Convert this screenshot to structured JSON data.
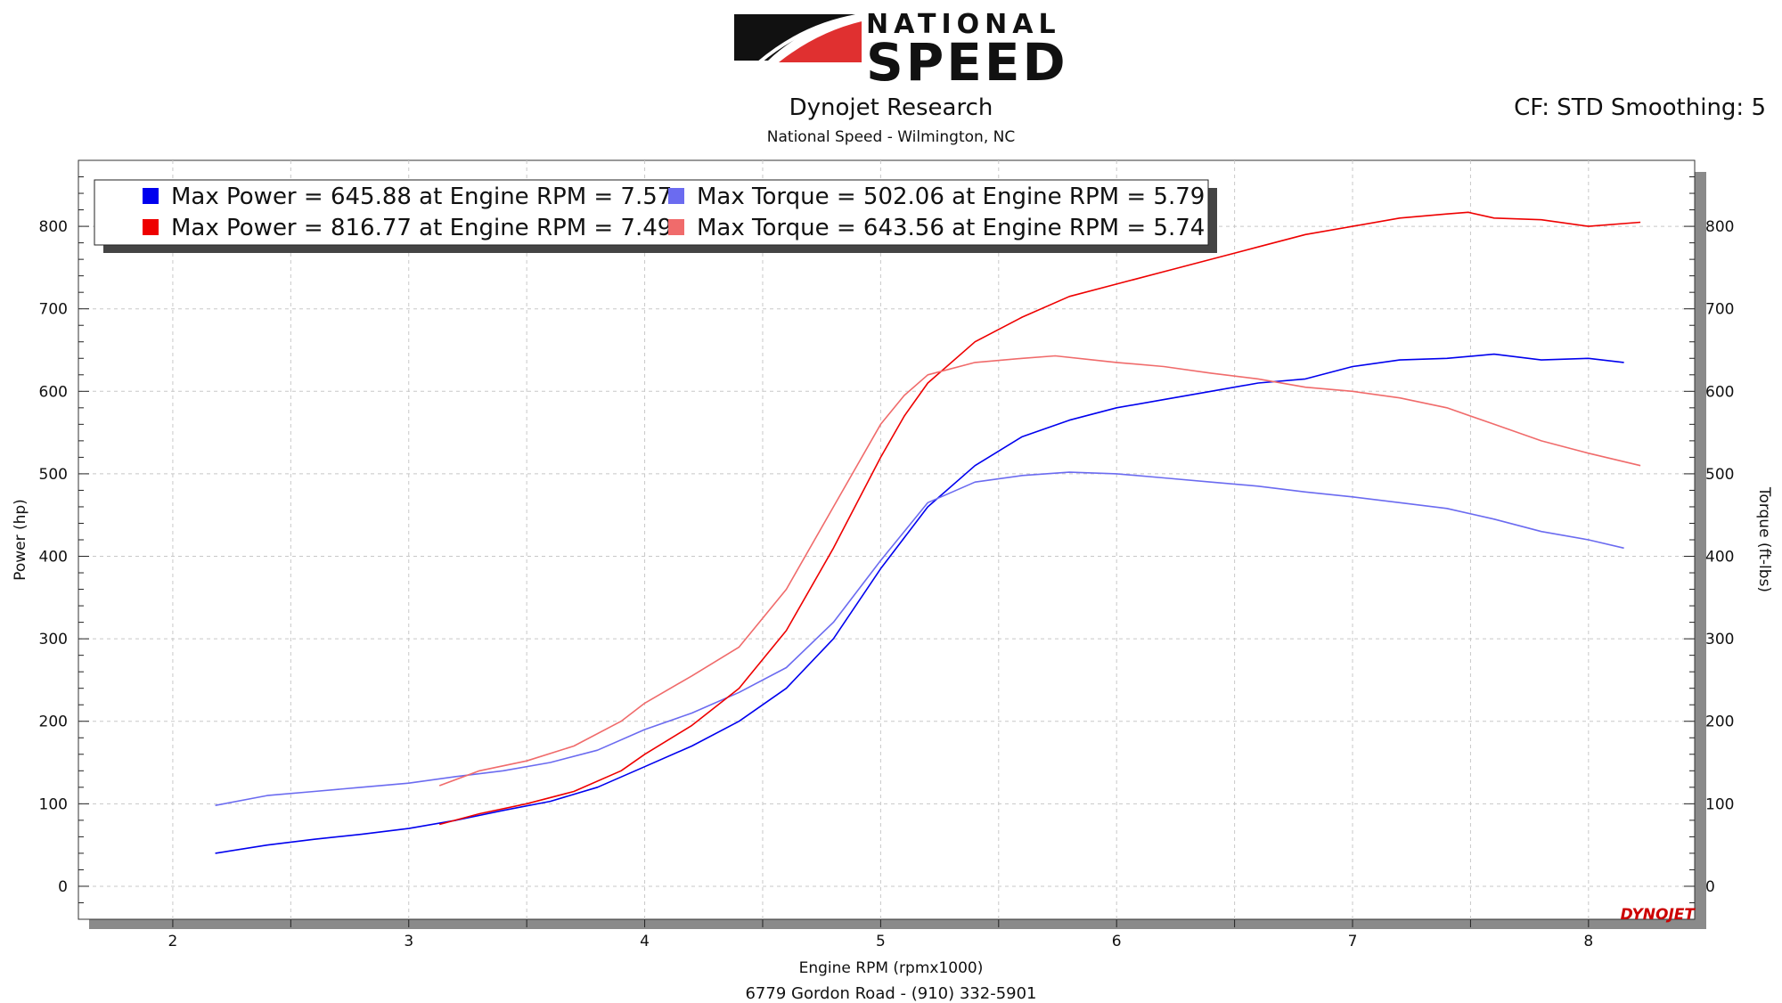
{
  "header": {
    "logo_top": "NATIONAL",
    "logo_bottom": "SPEED",
    "title": "Dynojet Research",
    "subtitle": "National Speed - Wilmington, NC",
    "correction": "CF: STD Smoothing: 5"
  },
  "footer": {
    "address": "6779 Gordon Road - (910) 332-5901"
  },
  "brand": {
    "watermark": "DYNOJET"
  },
  "colors": {
    "power_blue": "#0000ee",
    "power_red": "#ee0000",
    "torque_blue": "#6b6bf0",
    "torque_red": "#f06b6b"
  },
  "chart_data": {
    "type": "line",
    "xlabel": "Engine RPM (rpmx1000)",
    "ylabel": "Power (hp)",
    "y2label": "Torque (ft-lbs)",
    "xlim": [
      1.6,
      8.45
    ],
    "ylim": [
      -40,
      880
    ],
    "y2lim": [
      -40,
      880
    ],
    "x_ticks": [
      "2",
      "3",
      "4",
      "5",
      "6",
      "7",
      "8"
    ],
    "y_ticks": [
      "0",
      "100",
      "200",
      "300",
      "400",
      "500",
      "600",
      "700",
      "800"
    ],
    "y2_ticks": [
      "0",
      "100",
      "200",
      "300",
      "400",
      "500",
      "600",
      "700",
      "800"
    ],
    "grid": true,
    "legend_position": "top-left",
    "legend": [
      {
        "label": "Max Power = 645.88 at Engine RPM = 7.57",
        "color": "#0000ee"
      },
      {
        "label": "Max Torque = 502.06 at Engine RPM = 5.79",
        "color": "#6b6bf0"
      },
      {
        "label": "Max Power = 816.77 at Engine RPM = 7.49",
        "color": "#ee0000"
      },
      {
        "label": "Max Torque = 643.56 at Engine RPM = 5.74",
        "color": "#f06b6b"
      }
    ],
    "series": [
      {
        "color": "#0000ee",
        "axis": "left",
        "x": [
          2.18,
          2.4,
          2.6,
          2.8,
          3.0,
          3.2,
          3.4,
          3.6,
          3.8,
          4.0,
          4.2,
          4.4,
          4.6,
          4.8,
          5.0,
          5.2,
          5.4,
          5.6,
          5.8,
          6.0,
          6.2,
          6.4,
          6.6,
          6.8,
          7.0,
          7.2,
          7.4,
          7.6,
          7.8,
          8.0,
          8.15
        ],
        "y": [
          40,
          50,
          57,
          63,
          70,
          80,
          92,
          103,
          120,
          145,
          170,
          200,
          240,
          300,
          385,
          460,
          510,
          545,
          565,
          580,
          590,
          600,
          610,
          615,
          630,
          638,
          640,
          645,
          638,
          640,
          635
        ]
      },
      {
        "color": "#6b6bf0",
        "axis": "right",
        "x": [
          2.18,
          2.4,
          2.6,
          2.8,
          3.0,
          3.2,
          3.4,
          3.6,
          3.8,
          4.0,
          4.2,
          4.4,
          4.6,
          4.8,
          5.0,
          5.2,
          5.4,
          5.6,
          5.8,
          6.0,
          6.2,
          6.4,
          6.6,
          6.8,
          7.0,
          7.2,
          7.4,
          7.6,
          7.8,
          8.0,
          8.15
        ],
        "y": [
          98,
          110,
          115,
          120,
          125,
          133,
          140,
          150,
          165,
          190,
          210,
          235,
          265,
          320,
          395,
          465,
          490,
          498,
          502,
          500,
          495,
          490,
          485,
          478,
          472,
          465,
          458,
          445,
          430,
          420,
          410
        ]
      },
      {
        "color": "#ee0000",
        "axis": "left",
        "x": [
          3.13,
          3.3,
          3.5,
          3.7,
          3.9,
          4.0,
          4.2,
          4.4,
          4.6,
          4.8,
          5.0,
          5.1,
          5.2,
          5.4,
          5.6,
          5.8,
          6.0,
          6.2,
          6.4,
          6.6,
          6.8,
          7.0,
          7.2,
          7.4,
          7.49,
          7.6,
          7.8,
          8.0,
          8.22
        ],
        "y": [
          75,
          88,
          100,
          115,
          140,
          160,
          195,
          240,
          310,
          410,
          520,
          570,
          610,
          660,
          690,
          715,
          730,
          745,
          760,
          775,
          790,
          800,
          810,
          815,
          817,
          810,
          808,
          800,
          805
        ]
      },
      {
        "color": "#f06b6b",
        "axis": "right",
        "x": [
          3.13,
          3.3,
          3.5,
          3.7,
          3.9,
          4.0,
          4.2,
          4.4,
          4.6,
          4.8,
          5.0,
          5.1,
          5.2,
          5.4,
          5.6,
          5.74,
          5.9,
          6.0,
          6.2,
          6.4,
          6.6,
          6.8,
          7.0,
          7.2,
          7.4,
          7.6,
          7.8,
          8.0,
          8.22
        ],
        "y": [
          122,
          140,
          152,
          170,
          200,
          222,
          255,
          290,
          360,
          460,
          560,
          595,
          620,
          635,
          640,
          643,
          638,
          635,
          630,
          622,
          615,
          605,
          600,
          592,
          580,
          560,
          540,
          525,
          510
        ]
      }
    ]
  }
}
